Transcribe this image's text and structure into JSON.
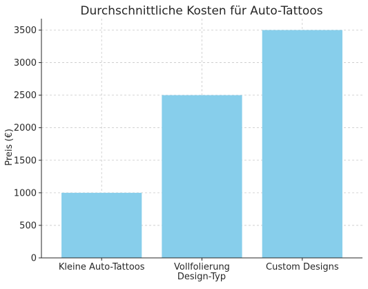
{
  "chart_data": {
    "type": "bar",
    "title": "Durchschnittliche Kosten für Auto-Tattoos",
    "xlabel": "Design-Typ",
    "ylabel": "Preis (€)",
    "categories": [
      "Kleine Auto-Tattoos",
      "Vollfolierung",
      "Custom Designs"
    ],
    "values": [
      1000,
      2500,
      3500
    ],
    "ylim": [
      0,
      3675
    ],
    "yticks": [
      0,
      500,
      1000,
      1500,
      2000,
      2500,
      3000,
      3500
    ],
    "ytick_labels": [
      "0",
      "500",
      "1000",
      "1500",
      "2000",
      "2500",
      "3000",
      "3500"
    ],
    "grid": true,
    "bar_color": "#87ceeb"
  }
}
